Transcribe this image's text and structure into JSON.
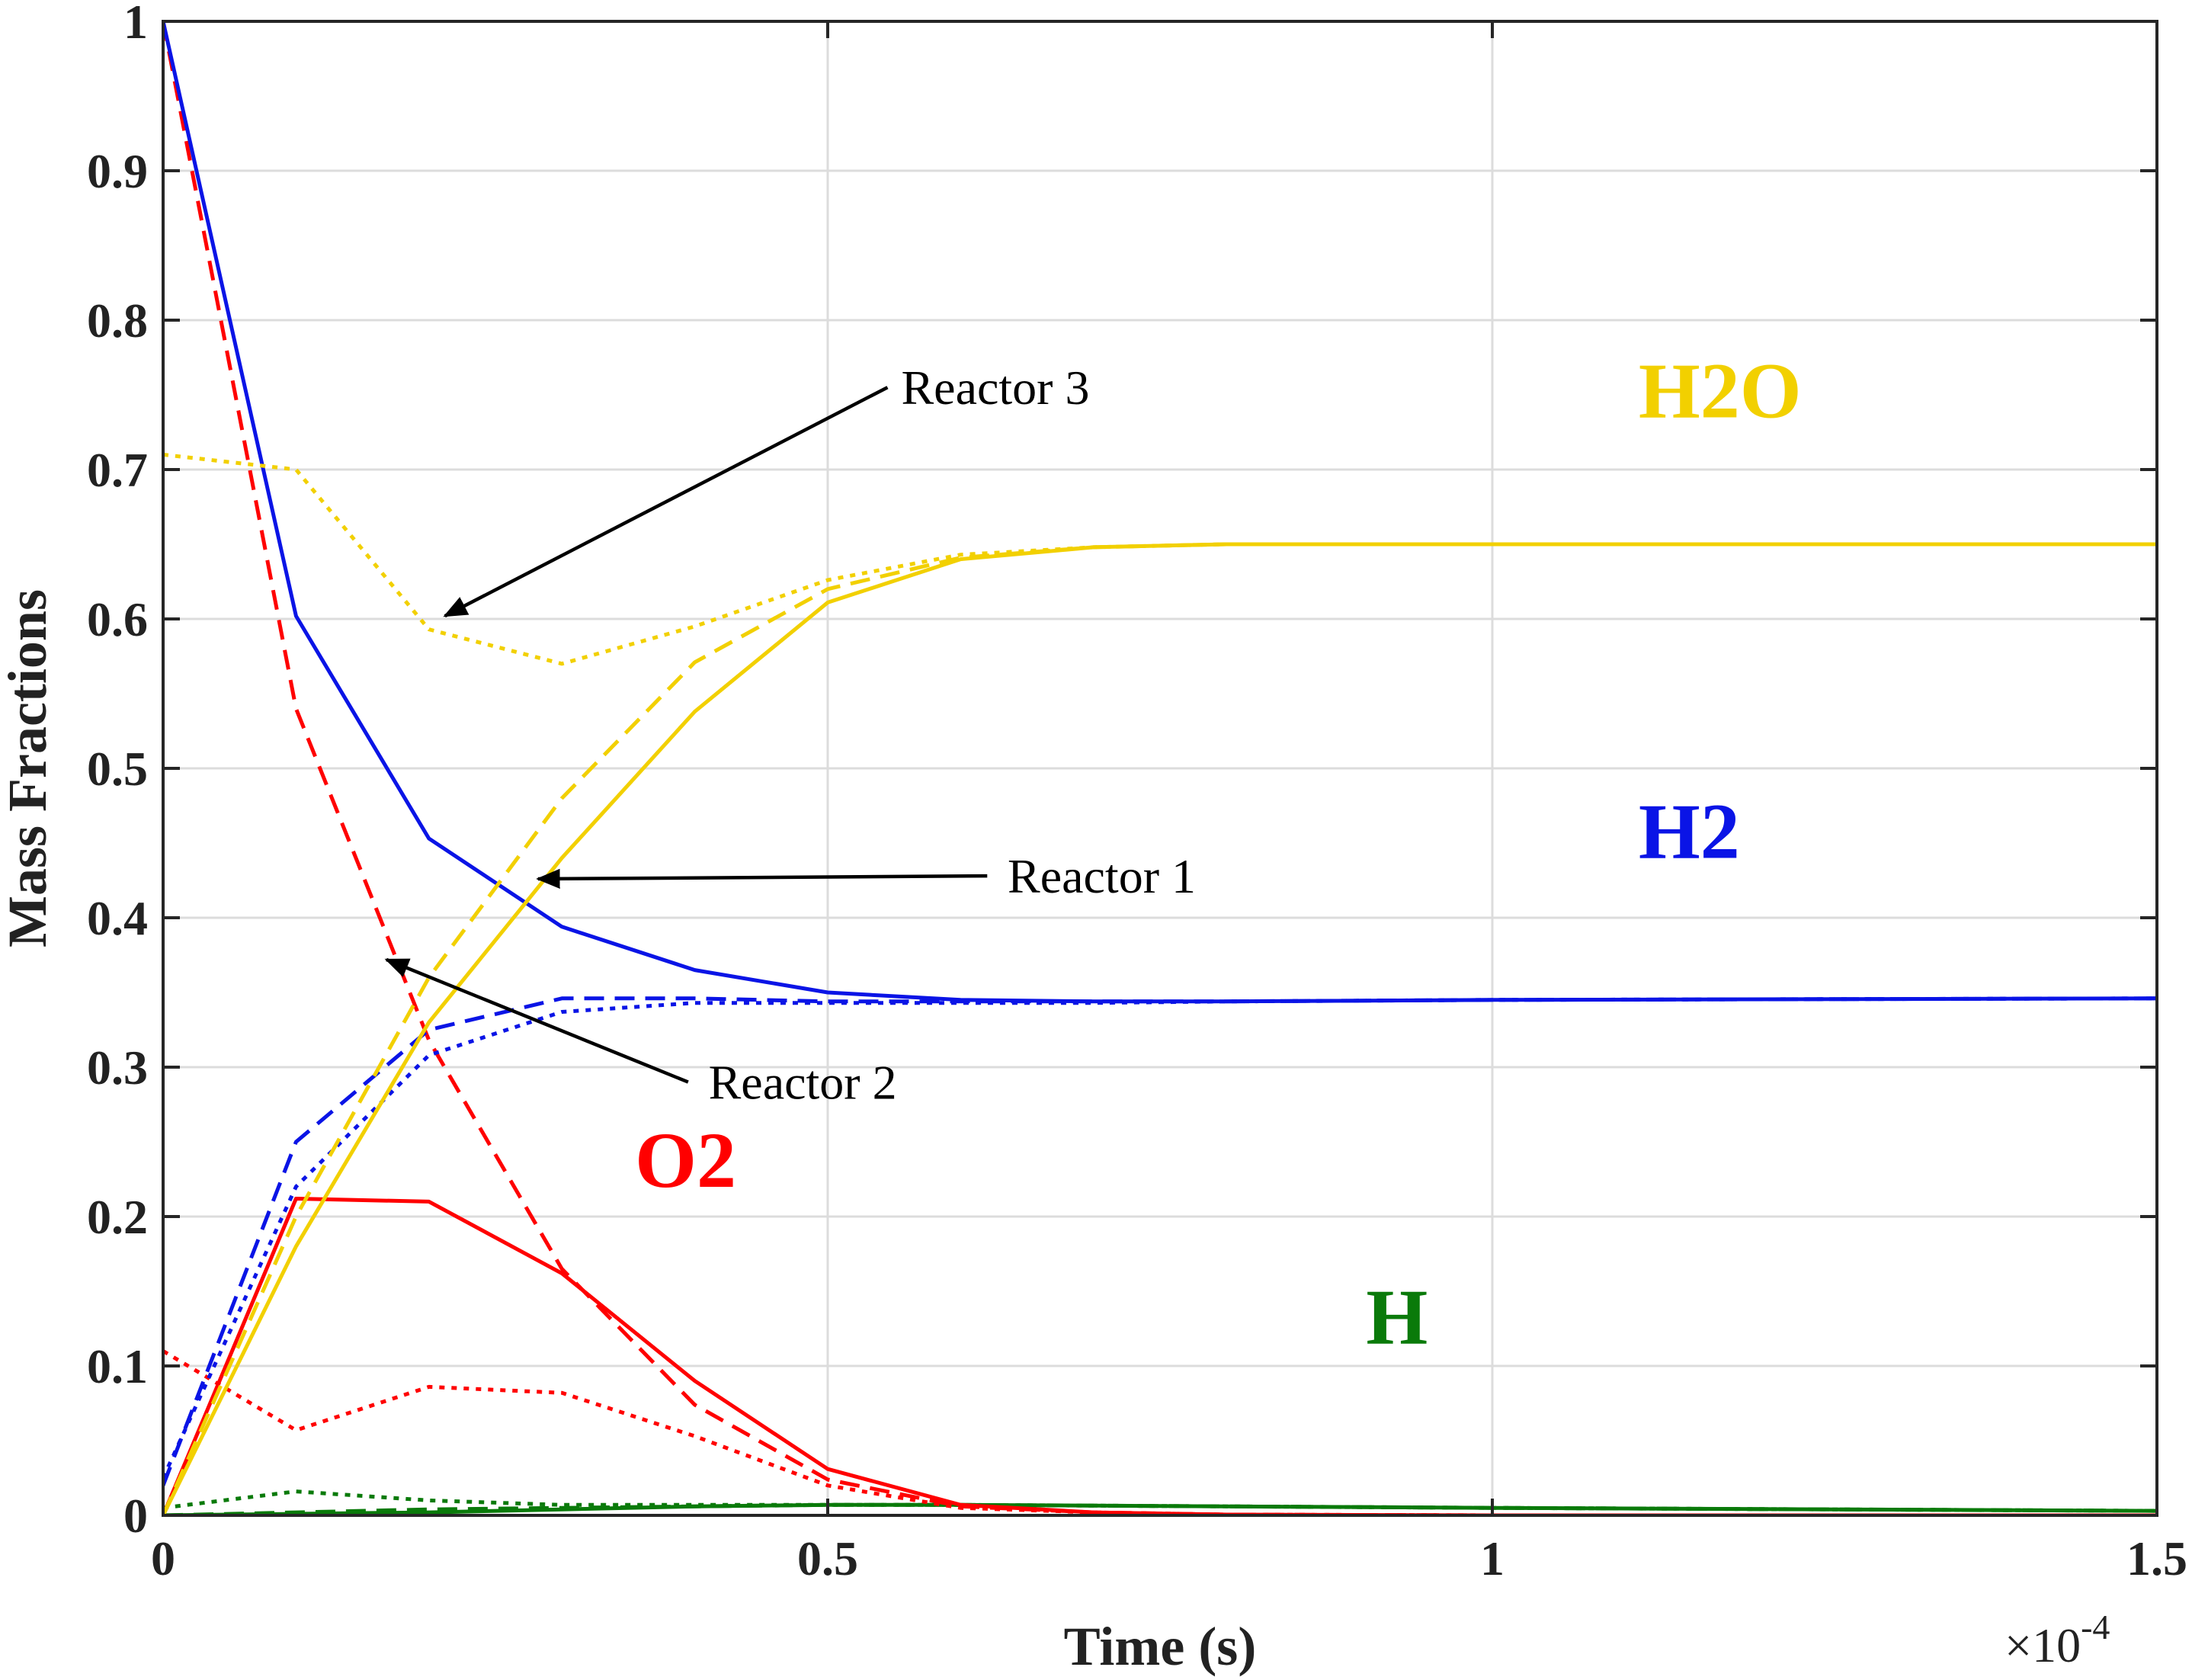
{
  "chart_data": {
    "type": "line",
    "xlabel": "Time (s)",
    "ylabel": "Mass Fractions",
    "x_exponent_base": "×10",
    "x_exponent_power": "-4",
    "xlim": [
      0,
      1.5
    ],
    "ylim": [
      0,
      1
    ],
    "xticks": [
      0,
      0.5,
      1,
      1.5
    ],
    "xtick_labels": [
      "0",
      "0.5",
      "1",
      "1.5"
    ],
    "yticks": [
      0,
      0.1,
      0.2,
      0.3,
      0.4,
      0.5,
      0.6,
      0.7,
      0.8,
      0.9,
      1
    ],
    "ytick_labels": [
      "0",
      "0.1",
      "0.2",
      "0.3",
      "0.4",
      "0.5",
      "0.6",
      "0.7",
      "0.8",
      "0.9",
      "1"
    ],
    "grid": true,
    "series": [
      {
        "species": "H2O",
        "reactor": "Reactor 1",
        "color": "#f2d000",
        "dash": "solid",
        "points": [
          [
            0,
            0
          ],
          [
            0.1,
            0.18
          ],
          [
            0.2,
            0.33
          ],
          [
            0.3,
            0.44
          ],
          [
            0.4,
            0.538
          ],
          [
            0.5,
            0.611
          ],
          [
            0.6,
            0.64
          ],
          [
            0.7,
            0.648
          ],
          [
            0.8,
            0.65
          ],
          [
            1.0,
            0.65
          ],
          [
            1.5,
            0.65
          ]
        ]
      },
      {
        "species": "H2O",
        "reactor": "Reactor 2",
        "color": "#f2d000",
        "dash": "dashed",
        "points": [
          [
            0,
            0
          ],
          [
            0.1,
            0.2
          ],
          [
            0.2,
            0.36
          ],
          [
            0.3,
            0.48
          ],
          [
            0.4,
            0.571
          ],
          [
            0.5,
            0.62
          ],
          [
            0.6,
            0.641
          ],
          [
            0.7,
            0.648
          ],
          [
            0.8,
            0.65
          ],
          [
            1.0,
            0.65
          ],
          [
            1.5,
            0.65
          ]
        ]
      },
      {
        "species": "H2O",
        "reactor": "Reactor 3",
        "color": "#f2d000",
        "dash": "dotted",
        "points": [
          [
            0,
            0.71
          ],
          [
            0.1,
            0.7
          ],
          [
            0.2,
            0.593
          ],
          [
            0.3,
            0.57
          ],
          [
            0.4,
            0.595
          ],
          [
            0.5,
            0.626
          ],
          [
            0.6,
            0.643
          ],
          [
            0.7,
            0.648
          ],
          [
            0.8,
            0.65
          ],
          [
            1.0,
            0.65
          ],
          [
            1.5,
            0.65
          ]
        ]
      },
      {
        "species": "H2",
        "reactor": "Reactor 1",
        "color": "#0a14e6",
        "dash": "solid",
        "points": [
          [
            0,
            1.0
          ],
          [
            0.1,
            0.602
          ],
          [
            0.2,
            0.453
          ],
          [
            0.3,
            0.394
          ],
          [
            0.4,
            0.365
          ],
          [
            0.5,
            0.35
          ],
          [
            0.6,
            0.345
          ],
          [
            0.7,
            0.344
          ],
          [
            0.8,
            0.344
          ],
          [
            1.0,
            0.345
          ],
          [
            1.5,
            0.346
          ]
        ]
      },
      {
        "species": "H2",
        "reactor": "Reactor 2",
        "color": "#0a14e6",
        "dash": "dashed",
        "points": [
          [
            0,
            0.02
          ],
          [
            0.1,
            0.25
          ],
          [
            0.2,
            0.325
          ],
          [
            0.3,
            0.346
          ],
          [
            0.4,
            0.346
          ],
          [
            0.5,
            0.344
          ],
          [
            0.6,
            0.344
          ],
          [
            0.7,
            0.344
          ],
          [
            0.8,
            0.344
          ],
          [
            1.0,
            0.345
          ],
          [
            1.5,
            0.346
          ]
        ]
      },
      {
        "species": "H2",
        "reactor": "Reactor 3",
        "color": "#0a14e6",
        "dash": "dotted",
        "points": [
          [
            0,
            0.025
          ],
          [
            0.1,
            0.22
          ],
          [
            0.2,
            0.308
          ],
          [
            0.3,
            0.337
          ],
          [
            0.4,
            0.343
          ],
          [
            0.5,
            0.343
          ],
          [
            0.6,
            0.343
          ],
          [
            0.7,
            0.343
          ],
          [
            0.8,
            0.344
          ],
          [
            1.0,
            0.345
          ],
          [
            1.5,
            0.346
          ]
        ]
      },
      {
        "species": "O2",
        "reactor": "Reactor 1",
        "color": "#ff0000",
        "dash": "solid",
        "points": [
          [
            0,
            0
          ],
          [
            0.1,
            0.212
          ],
          [
            0.2,
            0.21
          ],
          [
            0.3,
            0.162
          ],
          [
            0.4,
            0.09
          ],
          [
            0.5,
            0.031
          ],
          [
            0.6,
            0.007
          ],
          [
            0.7,
            0.002
          ],
          [
            0.8,
            0.0005
          ],
          [
            1.0,
            0
          ],
          [
            1.5,
            0
          ]
        ]
      },
      {
        "species": "O2",
        "reactor": "Reactor 2",
        "color": "#ff0000",
        "dash": "dashed",
        "points": [
          [
            0,
            1.0
          ],
          [
            0.1,
            0.54
          ],
          [
            0.2,
            0.318
          ],
          [
            0.3,
            0.165
          ],
          [
            0.4,
            0.074
          ],
          [
            0.5,
            0.024
          ],
          [
            0.6,
            0.006
          ],
          [
            0.7,
            0.002
          ],
          [
            0.8,
            0.0005
          ],
          [
            1.0,
            0
          ],
          [
            1.5,
            0
          ]
        ]
      },
      {
        "species": "O2",
        "reactor": "Reactor 3",
        "color": "#ff0000",
        "dash": "dotted",
        "points": [
          [
            0,
            0.11
          ],
          [
            0.1,
            0.057
          ],
          [
            0.2,
            0.086
          ],
          [
            0.3,
            0.082
          ],
          [
            0.4,
            0.053
          ],
          [
            0.5,
            0.02
          ],
          [
            0.6,
            0.005
          ],
          [
            0.7,
            0.002
          ],
          [
            0.8,
            0.0005
          ],
          [
            1.0,
            0
          ],
          [
            1.5,
            0
          ]
        ]
      },
      {
        "species": "H",
        "reactor": "Reactor 1",
        "color": "#0a7a0a",
        "dash": "solid",
        "points": [
          [
            0,
            0
          ],
          [
            0.1,
            0.001
          ],
          [
            0.2,
            0.002
          ],
          [
            0.3,
            0.004
          ],
          [
            0.4,
            0.006
          ],
          [
            0.5,
            0.007
          ],
          [
            0.6,
            0.007
          ],
          [
            0.8,
            0.006
          ],
          [
            1.0,
            0.005
          ],
          [
            1.5,
            0.003
          ]
        ]
      },
      {
        "species": "H",
        "reactor": "Reactor 2",
        "color": "#0a7a0a",
        "dash": "dashed",
        "points": [
          [
            0,
            0
          ],
          [
            0.1,
            0.002
          ],
          [
            0.2,
            0.004
          ],
          [
            0.3,
            0.005
          ],
          [
            0.4,
            0.006
          ],
          [
            0.5,
            0.007
          ],
          [
            0.6,
            0.007
          ],
          [
            0.8,
            0.006
          ],
          [
            1.0,
            0.005
          ],
          [
            1.5,
            0.003
          ]
        ]
      },
      {
        "species": "H",
        "reactor": "Reactor 3",
        "color": "#0a7a0a",
        "dash": "dotted",
        "points": [
          [
            0,
            0.005
          ],
          [
            0.1,
            0.016
          ],
          [
            0.2,
            0.01
          ],
          [
            0.3,
            0.007
          ],
          [
            0.4,
            0.007
          ],
          [
            0.5,
            0.007
          ],
          [
            0.6,
            0.007
          ],
          [
            0.8,
            0.006
          ],
          [
            1.0,
            0.005
          ],
          [
            1.5,
            0.003
          ]
        ]
      }
    ],
    "species_labels": [
      {
        "text": "H2O",
        "color": "#f2d000",
        "at": [
          1.11,
          0.735
        ]
      },
      {
        "text": "H2",
        "color": "#0a14e6",
        "at": [
          1.11,
          0.44
        ]
      },
      {
        "text": "O2",
        "color": "#ff0000",
        "at": [
          0.355,
          0.22
        ]
      },
      {
        "text": "H",
        "color": "#0a7a0a",
        "at": [
          0.905,
          0.115
        ]
      }
    ],
    "annotations": [
      {
        "text": "Reactor 3",
        "text_at": [
          0.545,
          0.755
        ],
        "arrow_from": [
          0.545,
          0.755
        ],
        "arrow_to": [
          0.212,
          0.602
        ]
      },
      {
        "text": "Reactor 1",
        "text_at": [
          0.625,
          0.428
        ],
        "arrow_from": [
          0.62,
          0.428
        ],
        "arrow_to": [
          0.282,
          0.426
        ]
      },
      {
        "text": "Reactor 2",
        "text_at": [
          0.4,
          0.29
        ],
        "arrow_from": [
          0.395,
          0.29
        ],
        "arrow_to": [
          0.168,
          0.372
        ]
      }
    ]
  }
}
